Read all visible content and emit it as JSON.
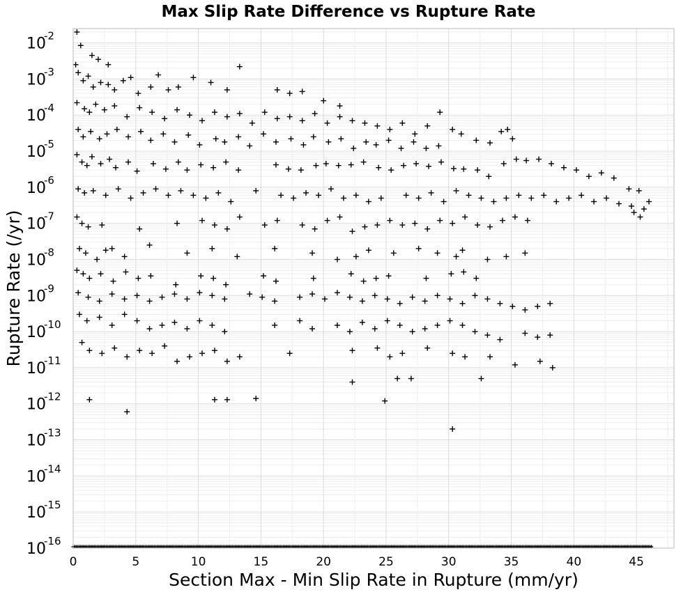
{
  "chart_data": {
    "type": "scatter",
    "title": "Max Slip Rate Difference vs Rupture Rate",
    "xlabel": "Section Max - Min Slip Rate in Rupture (mm/yr)",
    "ylabel": "Rupture Rate (/yr)",
    "xlim": [
      0,
      48
    ],
    "ylim": [
      1e-16,
      0.025
    ],
    "y_scale": "log",
    "grid": true,
    "marker": "plus",
    "marker_color": "#000000",
    "x_ticks": [
      "0",
      "5",
      "10",
      "15",
      "20",
      "25",
      "30",
      "35",
      "40",
      "45"
    ],
    "y_ticks": [
      {
        "base": "10",
        "exp": "-16"
      },
      {
        "base": "10",
        "exp": "-15"
      },
      {
        "base": "10",
        "exp": "-14"
      },
      {
        "base": "10",
        "exp": "-13"
      },
      {
        "base": "10",
        "exp": "-12"
      },
      {
        "base": "10",
        "exp": "-11"
      },
      {
        "base": "10",
        "exp": "-10"
      },
      {
        "base": "10",
        "exp": "-9"
      },
      {
        "base": "10",
        "exp": "-8"
      },
      {
        "base": "10",
        "exp": "-7"
      },
      {
        "base": "10",
        "exp": "-6"
      },
      {
        "base": "10",
        "exp": "-5"
      },
      {
        "base": "10",
        "exp": "-4"
      },
      {
        "base": "10",
        "exp": "-3"
      },
      {
        "base": "10",
        "exp": "-2"
      }
    ],
    "points": [
      [
        0.2,
        0.0025
      ],
      [
        0.4,
        0.0015
      ],
      [
        0.8,
        0.0009
      ],
      [
        1.2,
        0.0012
      ],
      [
        1.6,
        0.0006
      ],
      [
        2.2,
        0.0008
      ],
      [
        2.8,
        0.0007
      ],
      [
        3.3,
        0.0005
      ],
      [
        4.0,
        0.0009
      ],
      [
        4.6,
        0.0011
      ],
      [
        5.2,
        0.0004
      ],
      [
        6.2,
        0.0006
      ],
      [
        6.8,
        0.0013
      ],
      [
        7.6,
        0.0005
      ],
      [
        8.4,
        0.0006
      ],
      [
        9.6,
        0.0011
      ],
      [
        11.0,
        0.0008
      ],
      [
        12.3,
        0.0005
      ],
      [
        13.3,
        0.0022
      ],
      [
        16.3,
        0.0005
      ],
      [
        17.3,
        0.0004
      ],
      [
        18.3,
        0.00045
      ],
      [
        20.0,
        0.00025
      ],
      [
        21.3,
        0.00018
      ],
      [
        0.6,
        0.0085
      ],
      [
        0.3,
        0.02
      ],
      [
        2.0,
        0.0035
      ],
      [
        2.8,
        0.0025
      ],
      [
        1.5,
        0.0045
      ],
      [
        0.3,
        0.00022
      ],
      [
        0.9,
        0.00015
      ],
      [
        1.3,
        0.00012
      ],
      [
        1.8,
        0.0002
      ],
      [
        2.5,
        0.00014
      ],
      [
        3.3,
        0.00018
      ],
      [
        4.3,
        9e-05
      ],
      [
        5.3,
        0.00016
      ],
      [
        6.3,
        0.00012
      ],
      [
        7.3,
        8e-05
      ],
      [
        8.3,
        0.00014
      ],
      [
        9.3,
        0.0001
      ],
      [
        10.3,
        7e-05
      ],
      [
        11.3,
        0.00012
      ],
      [
        12.3,
        9e-05
      ],
      [
        13.3,
        0.00011
      ],
      [
        14.3,
        6e-05
      ],
      [
        15.3,
        0.00012
      ],
      [
        16.3,
        8e-05
      ],
      [
        17.3,
        9e-05
      ],
      [
        18.3,
        7e-05
      ],
      [
        19.3,
        0.00011
      ],
      [
        20.3,
        6e-05
      ],
      [
        21.3,
        9e-05
      ],
      [
        22.3,
        7e-05
      ],
      [
        23.3,
        6e-05
      ],
      [
        24.3,
        5e-05
      ],
      [
        25.3,
        4e-05
      ],
      [
        26.3,
        6e-05
      ],
      [
        27.3,
        3e-05
      ],
      [
        28.3,
        5e-05
      ],
      [
        29.3,
        0.00012
      ],
      [
        30.3,
        4e-05
      ],
      [
        31.0,
        3e-05
      ],
      [
        0.4,
        4e-05
      ],
      [
        0.8,
        2.5e-05
      ],
      [
        1.4,
        3.5e-05
      ],
      [
        2.1,
        2.2e-05
      ],
      [
        2.7,
        3e-05
      ],
      [
        3.5,
        4e-05
      ],
      [
        4.4,
        2.5e-05
      ],
      [
        5.4,
        3.5e-05
      ],
      [
        6.2,
        2e-05
      ],
      [
        7.2,
        3e-05
      ],
      [
        8.1,
        1.8e-05
      ],
      [
        9.2,
        2.8e-05
      ],
      [
        10.1,
        1.5e-05
      ],
      [
        11.4,
        2.2e-05
      ],
      [
        12.1,
        1.8e-05
      ],
      [
        13.2,
        2.5e-05
      ],
      [
        14.1,
        1.4e-05
      ],
      [
        15.2,
        3e-05
      ],
      [
        16.2,
        1.8e-05
      ],
      [
        17.4,
        2.2e-05
      ],
      [
        18.4,
        1.5e-05
      ],
      [
        19.2,
        2.5e-05
      ],
      [
        20.4,
        1.8e-05
      ],
      [
        21.4,
        2.2e-05
      ],
      [
        22.4,
        1.2e-05
      ],
      [
        23.4,
        1.8e-05
      ],
      [
        24.2,
        1.5e-05
      ],
      [
        25.2,
        2e-05
      ],
      [
        26.2,
        1.2e-05
      ],
      [
        27.2,
        1.8e-05
      ],
      [
        28.2,
        1.2e-05
      ],
      [
        29.2,
        1.4e-05
      ],
      [
        32.2,
        2e-05
      ],
      [
        33.3,
        1.7e-05
      ],
      [
        34.2,
        3.5e-05
      ],
      [
        34.7,
        4e-05
      ],
      [
        35.1,
        2.2e-05
      ],
      [
        0.3,
        8e-06
      ],
      [
        0.7,
        5e-06
      ],
      [
        1.1,
        4e-06
      ],
      [
        1.5,
        7e-06
      ],
      [
        2.2,
        4.5e-06
      ],
      [
        2.9,
        6e-06
      ],
      [
        3.4,
        3.5e-06
      ],
      [
        4.4,
        5e-06
      ],
      [
        5.1,
        2.8e-06
      ],
      [
        6.4,
        4.5e-06
      ],
      [
        7.4,
        3.2e-06
      ],
      [
        8.4,
        5e-06
      ],
      [
        9.1,
        3e-06
      ],
      [
        10.2,
        4.2e-06
      ],
      [
        11.2,
        3.5e-06
      ],
      [
        12.2,
        5e-06
      ],
      [
        13.2,
        3e-06
      ],
      [
        16.2,
        4.2e-06
      ],
      [
        17.2,
        3.2e-06
      ],
      [
        18.2,
        3e-06
      ],
      [
        19.4,
        4e-06
      ],
      [
        20.2,
        4.5e-06
      ],
      [
        21.2,
        4e-06
      ],
      [
        22.2,
        4.2e-06
      ],
      [
        23.2,
        5e-06
      ],
      [
        24.4,
        3.5e-06
      ],
      [
        25.4,
        3e-06
      ],
      [
        26.4,
        4e-06
      ],
      [
        27.4,
        4.5e-06
      ],
      [
        28.4,
        3.8e-06
      ],
      [
        29.4,
        5e-06
      ],
      [
        30.4,
        3.3e-06
      ],
      [
        31.2,
        3.2e-06
      ],
      [
        32.3,
        3e-06
      ],
      [
        33.2,
        2e-06
      ],
      [
        34.4,
        4.5e-06
      ],
      [
        35.4,
        6e-06
      ],
      [
        36.2,
        5.5e-06
      ],
      [
        37.2,
        6e-06
      ],
      [
        38.2,
        4.5e-06
      ],
      [
        39.2,
        3.5e-06
      ],
      [
        40.2,
        3e-06
      ],
      [
        41.2,
        2e-06
      ],
      [
        42.2,
        2.5e-06
      ],
      [
        43.2,
        1.8e-06
      ],
      [
        44.4,
        9e-07
      ],
      [
        45.2,
        8e-07
      ],
      [
        0.4,
        9e-07
      ],
      [
        0.9,
        7e-07
      ],
      [
        1.6,
        8e-07
      ],
      [
        2.6,
        6e-07
      ],
      [
        3.6,
        9e-07
      ],
      [
        4.6,
        5e-07
      ],
      [
        5.6,
        7e-07
      ],
      [
        6.6,
        9e-07
      ],
      [
        7.6,
        6e-07
      ],
      [
        8.6,
        8e-07
      ],
      [
        9.6,
        6e-07
      ],
      [
        10.6,
        5e-07
      ],
      [
        11.6,
        7e-07
      ],
      [
        12.6,
        4e-07
      ],
      [
        14.6,
        8e-07
      ],
      [
        16.6,
        6e-07
      ],
      [
        17.6,
        5e-07
      ],
      [
        18.6,
        7e-07
      ],
      [
        19.6,
        6e-07
      ],
      [
        20.6,
        9e-07
      ],
      [
        21.6,
        5e-07
      ],
      [
        22.6,
        6e-07
      ],
      [
        23.6,
        4e-07
      ],
      [
        24.6,
        5e-07
      ],
      [
        26.6,
        6e-07
      ],
      [
        27.6,
        5e-07
      ],
      [
        28.6,
        7e-07
      ],
      [
        29.6,
        4e-07
      ],
      [
        30.6,
        8e-07
      ],
      [
        31.6,
        6e-07
      ],
      [
        32.6,
        5e-07
      ],
      [
        33.6,
        4e-07
      ],
      [
        34.6,
        5e-07
      ],
      [
        35.6,
        6e-07
      ],
      [
        36.6,
        5e-07
      ],
      [
        37.6,
        6e-07
      ],
      [
        38.6,
        4e-07
      ],
      [
        39.6,
        5e-07
      ],
      [
        40.6,
        6e-07
      ],
      [
        41.6,
        4e-07
      ],
      [
        42.6,
        5e-07
      ],
      [
        43.6,
        3.5e-07
      ],
      [
        44.6,
        3e-07
      ],
      [
        45.6,
        2.5e-07
      ],
      [
        46.0,
        4e-07
      ],
      [
        45.3,
        1.5e-07
      ],
      [
        44.8,
        2e-07
      ],
      [
        0.3,
        1.5e-07
      ],
      [
        0.7,
        1e-07
      ],
      [
        1.2,
        8e-08
      ],
      [
        2.3,
        9e-08
      ],
      [
        5.3,
        7e-08
      ],
      [
        8.3,
        1e-07
      ],
      [
        10.3,
        1.2e-07
      ],
      [
        11.3,
        9e-08
      ],
      [
        12.3,
        7e-08
      ],
      [
        13.3,
        1.5e-07
      ],
      [
        15.3,
        9e-08
      ],
      [
        16.3,
        1.2e-07
      ],
      [
        18.3,
        9e-08
      ],
      [
        19.3,
        7e-08
      ],
      [
        20.3,
        1.2e-07
      ],
      [
        21.3,
        1.5e-07
      ],
      [
        22.3,
        6e-08
      ],
      [
        23.3,
        8e-08
      ],
      [
        24.3,
        9e-08
      ],
      [
        25.3,
        1.2e-07
      ],
      [
        26.3,
        9e-08
      ],
      [
        27.3,
        1e-07
      ],
      [
        28.3,
        7e-08
      ],
      [
        29.3,
        1.2e-07
      ],
      [
        30.3,
        1e-07
      ],
      [
        31.3,
        1.5e-07
      ],
      [
        32.3,
        9e-08
      ],
      [
        33.3,
        8e-08
      ],
      [
        34.3,
        1.2e-07
      ],
      [
        35.3,
        1.5e-07
      ],
      [
        36.3,
        1.2e-07
      ],
      [
        0.5,
        2e-08
      ],
      [
        1.0,
        1.5e-08
      ],
      [
        1.9,
        1e-08
      ],
      [
        2.6,
        1.8e-08
      ],
      [
        3.1,
        2e-08
      ],
      [
        4.1,
        1.2e-08
      ],
      [
        6.1,
        2.5e-08
      ],
      [
        9.1,
        1.5e-08
      ],
      [
        11.1,
        2e-08
      ],
      [
        13.1,
        1.2e-08
      ],
      [
        16.1,
        2e-08
      ],
      [
        19.1,
        1.5e-08
      ],
      [
        21.1,
        1e-08
      ],
      [
        22.6,
        1.2e-08
      ],
      [
        23.6,
        1.8e-08
      ],
      [
        25.6,
        1.5e-08
      ],
      [
        27.6,
        2e-08
      ],
      [
        29.1,
        1.5e-08
      ],
      [
        30.6,
        1.2e-08
      ],
      [
        31.1,
        1.8e-08
      ],
      [
        33.1,
        1e-08
      ],
      [
        34.6,
        1.2e-08
      ],
      [
        36.1,
        1.5e-08
      ],
      [
        0.3,
        5e-09
      ],
      [
        0.8,
        4e-09
      ],
      [
        1.3,
        3e-09
      ],
      [
        2.2,
        4e-09
      ],
      [
        3.2,
        2.5e-09
      ],
      [
        4.2,
        4.5e-09
      ],
      [
        5.2,
        3e-09
      ],
      [
        6.2,
        3.5e-09
      ],
      [
        8.2,
        2e-09
      ],
      [
        10.2,
        3.5e-09
      ],
      [
        11.2,
        3e-09
      ],
      [
        12.2,
        2e-09
      ],
      [
        15.2,
        3.5e-09
      ],
      [
        16.2,
        2.5e-09
      ],
      [
        19.2,
        3e-09
      ],
      [
        22.2,
        4e-09
      ],
      [
        23.2,
        2.5e-09
      ],
      [
        24.2,
        3e-09
      ],
      [
        25.2,
        3.5e-09
      ],
      [
        28.2,
        3e-09
      ],
      [
        30.2,
        4e-09
      ],
      [
        31.2,
        4.5e-09
      ],
      [
        32.2,
        3e-09
      ],
      [
        0.4,
        1.2e-09
      ],
      [
        1.2,
        9e-10
      ],
      [
        2.1,
        7e-10
      ],
      [
        3.1,
        1.1e-09
      ],
      [
        4.1,
        8e-10
      ],
      [
        5.1,
        1e-09
      ],
      [
        6.1,
        7e-10
      ],
      [
        7.1,
        9e-10
      ],
      [
        8.1,
        1.1e-09
      ],
      [
        9.1,
        8e-10
      ],
      [
        10.1,
        1.2e-09
      ],
      [
        11.1,
        1e-09
      ],
      [
        12.1,
        8e-10
      ],
      [
        14.1,
        1.1e-09
      ],
      [
        15.1,
        9e-10
      ],
      [
        16.1,
        7e-10
      ],
      [
        18.1,
        9e-10
      ],
      [
        19.1,
        1.1e-09
      ],
      [
        20.1,
        8e-10
      ],
      [
        21.1,
        1.2e-09
      ],
      [
        22.1,
        9e-10
      ],
      [
        23.1,
        7e-10
      ],
      [
        24.1,
        1e-09
      ],
      [
        25.1,
        8e-10
      ],
      [
        26.1,
        6e-10
      ],
      [
        27.1,
        9e-10
      ],
      [
        28.1,
        7e-10
      ],
      [
        29.1,
        1e-09
      ],
      [
        30.1,
        8e-10
      ],
      [
        31.1,
        6e-10
      ],
      [
        32.1,
        1e-09
      ],
      [
        33.1,
        8e-10
      ],
      [
        34.1,
        6e-10
      ],
      [
        35.1,
        5e-10
      ],
      [
        36.1,
        4e-10
      ],
      [
        37.1,
        5e-10
      ],
      [
        38.1,
        6e-10
      ],
      [
        0.5,
        3e-10
      ],
      [
        1.1,
        2e-10
      ],
      [
        2.1,
        2.5e-10
      ],
      [
        3.1,
        1.5e-10
      ],
      [
        4.1,
        3e-10
      ],
      [
        5.1,
        2e-10
      ],
      [
        6.1,
        1.2e-10
      ],
      [
        7.1,
        1.5e-10
      ],
      [
        8.1,
        1.8e-10
      ],
      [
        9.1,
        1.2e-10
      ],
      [
        10.1,
        2e-10
      ],
      [
        11.1,
        1.5e-10
      ],
      [
        12.1,
        1e-10
      ],
      [
        16.1,
        1.5e-10
      ],
      [
        18.1,
        2e-10
      ],
      [
        19.1,
        1.2e-10
      ],
      [
        21.1,
        1.5e-10
      ],
      [
        22.1,
        1e-10
      ],
      [
        23.1,
        1.8e-10
      ],
      [
        24.1,
        1.2e-10
      ],
      [
        25.1,
        2e-10
      ],
      [
        26.1,
        1.5e-10
      ],
      [
        27.1,
        1e-10
      ],
      [
        28.1,
        1.2e-10
      ],
      [
        29.1,
        1.5e-10
      ],
      [
        30.1,
        2e-10
      ],
      [
        31.1,
        1.5e-10
      ],
      [
        32.1,
        1e-10
      ],
      [
        33.1,
        8e-11
      ],
      [
        34.1,
        6e-11
      ],
      [
        36.1,
        9e-11
      ],
      [
        37.1,
        7e-11
      ],
      [
        38.1,
        8e-11
      ],
      [
        0.7,
        5e-11
      ],
      [
        1.3,
        3e-11
      ],
      [
        2.3,
        2.5e-11
      ],
      [
        3.3,
        3.5e-11
      ],
      [
        4.3,
        2e-11
      ],
      [
        5.3,
        3e-11
      ],
      [
        6.3,
        2.5e-11
      ],
      [
        7.3,
        4e-11
      ],
      [
        8.3,
        1.5e-11
      ],
      [
        9.3,
        2e-11
      ],
      [
        10.3,
        2.5e-11
      ],
      [
        11.3,
        3e-11
      ],
      [
        12.3,
        1.5e-11
      ],
      [
        13.3,
        2e-11
      ],
      [
        17.3,
        2.5e-11
      ],
      [
        22.3,
        3e-11
      ],
      [
        24.3,
        3.5e-11
      ],
      [
        25.3,
        2e-11
      ],
      [
        26.3,
        2.5e-11
      ],
      [
        28.3,
        3.5e-11
      ],
      [
        30.3,
        2.5e-11
      ],
      [
        31.3,
        2e-11
      ],
      [
        33.3,
        2e-11
      ],
      [
        35.3,
        1.2e-11
      ],
      [
        37.3,
        1.5e-11
      ],
      [
        38.3,
        1e-11
      ],
      [
        1.3,
        1.3e-12
      ],
      [
        4.3,
        6e-13
      ],
      [
        11.3,
        1.3e-12
      ],
      [
        12.3,
        1.3e-12
      ],
      [
        14.6,
        1.4e-12
      ],
      [
        22.3,
        4e-12
      ],
      [
        24.9,
        1.2e-12
      ],
      [
        25.9,
        5e-12
      ],
      [
        27.0,
        5e-12
      ],
      [
        32.6,
        5e-12
      ],
      [
        30.3,
        2e-13
      ]
    ],
    "floor_value": 1e-16,
    "floor_x_range": [
      0,
      46.2
    ],
    "floor_note": "dense row of points at 10^-16"
  }
}
